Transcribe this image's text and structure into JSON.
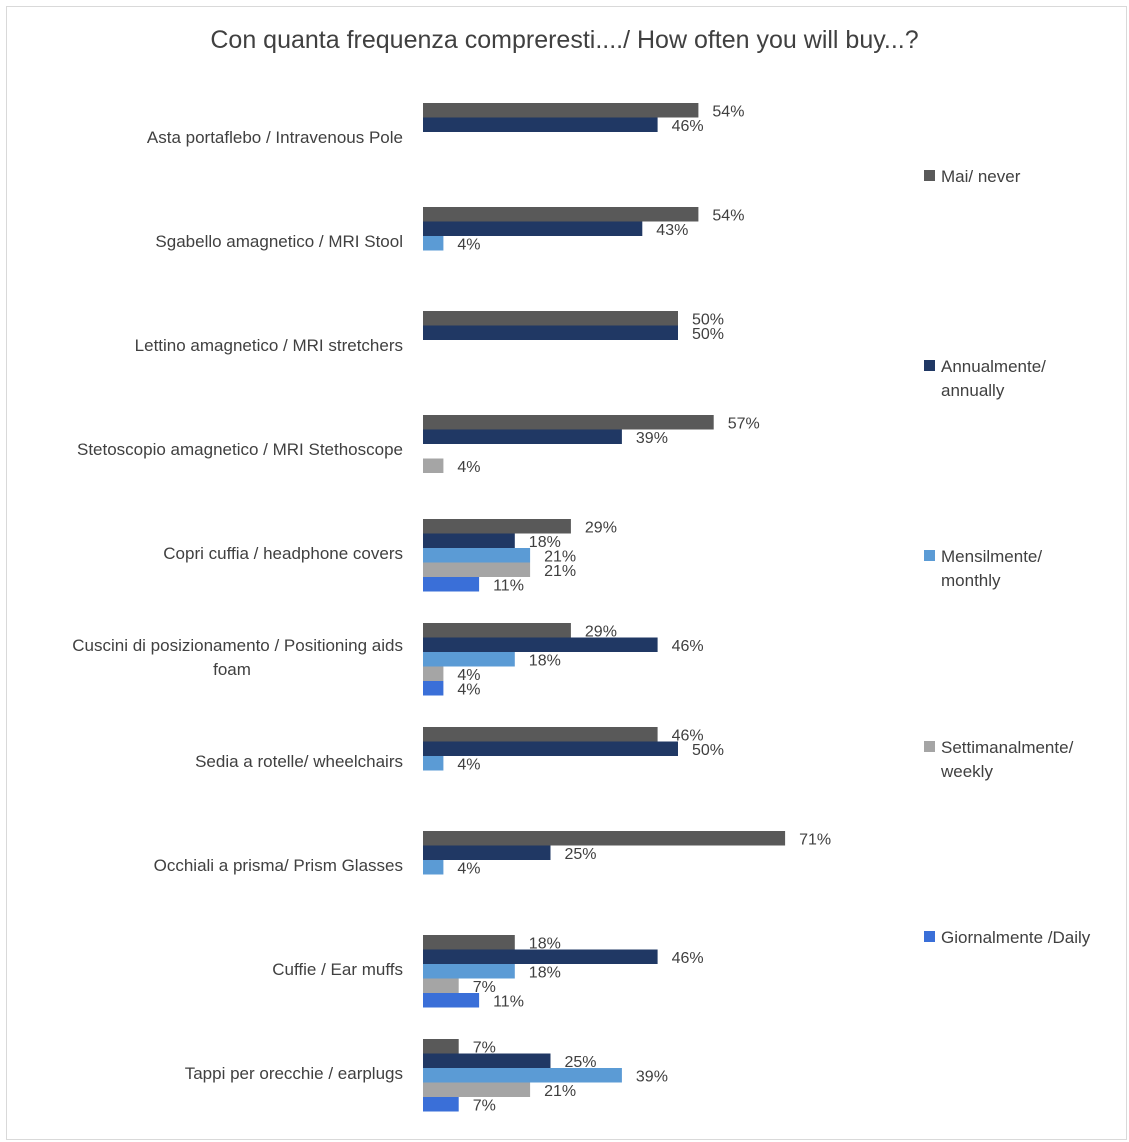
{
  "chart_data": {
    "type": "bar",
    "orientation": "horizontal",
    "title": "Con quanta frequenza compreresti..../ How often you will buy...?",
    "categories": [
      "Asta portaflebo / Intravenous Pole",
      "Sgabello amagnetico / MRI Stool",
      "Lettino amagnetico / MRI stretchers",
      "Stetoscopio amagnetico / MRI Stethoscope",
      "Copri cuffia / headphone covers",
      "Cuscini di posizionamento / Positioning aids foam",
      "Sedia a rotelle/ wheelchairs",
      "Occhiali a prisma/ Prism Glasses",
      "Cuffie / Ear muffs",
      "Tappi per orecchie / earplugs"
    ],
    "category_lines": [
      [
        "Asta portaflebo / Intravenous Pole"
      ],
      [
        "Sgabello amagnetico / MRI Stool"
      ],
      [
        "Lettino amagnetico / MRI stretchers"
      ],
      [
        "Stetoscopio amagnetico / MRI Stethoscope"
      ],
      [
        "Copri cuffia / headphone covers"
      ],
      [
        "Cuscini di posizionamento / Positioning aids",
        "foam"
      ],
      [
        "Sedia a rotelle/ wheelchairs"
      ],
      [
        "Occhiali a prisma/ Prism Glasses"
      ],
      [
        "Cuffie / Ear muffs"
      ],
      [
        "Tappi per orecchie / earplugs"
      ]
    ],
    "value_suffix": "%",
    "series": [
      {
        "name": "Mai/ never",
        "legend_lines": [
          "Mai/ never"
        ],
        "color": "#595959",
        "values": [
          54,
          54,
          50,
          57,
          29,
          29,
          46,
          71,
          18,
          7
        ]
      },
      {
        "name": "Annualmente/ annually",
        "legend_lines": [
          "Annualmente/",
          "annually"
        ],
        "color": "#203864",
        "values": [
          46,
          43,
          50,
          39,
          18,
          46,
          50,
          25,
          46,
          25
        ]
      },
      {
        "name": "Mensilmente/ monthly",
        "legend_lines": [
          "Mensilmente/",
          "monthly"
        ],
        "color": "#5B9BD5",
        "values": [
          null,
          4,
          null,
          null,
          21,
          18,
          4,
          4,
          18,
          39
        ]
      },
      {
        "name": "Settimanalmente/ weekly",
        "legend_lines": [
          "Settimanalmente/",
          "weekly"
        ],
        "color": "#A5A5A5",
        "values": [
          null,
          null,
          null,
          4,
          21,
          4,
          null,
          null,
          7,
          21
        ]
      },
      {
        "name": "Giornalmente /Daily",
        "legend_lines": [
          "Giornalmente /Daily"
        ],
        "color": "#3A6FD8",
        "values": [
          null,
          null,
          null,
          null,
          11,
          4,
          null,
          null,
          11,
          7
        ]
      }
    ],
    "xlim": [
      0,
      100
    ],
    "grid": false,
    "legend_position": "right"
  }
}
